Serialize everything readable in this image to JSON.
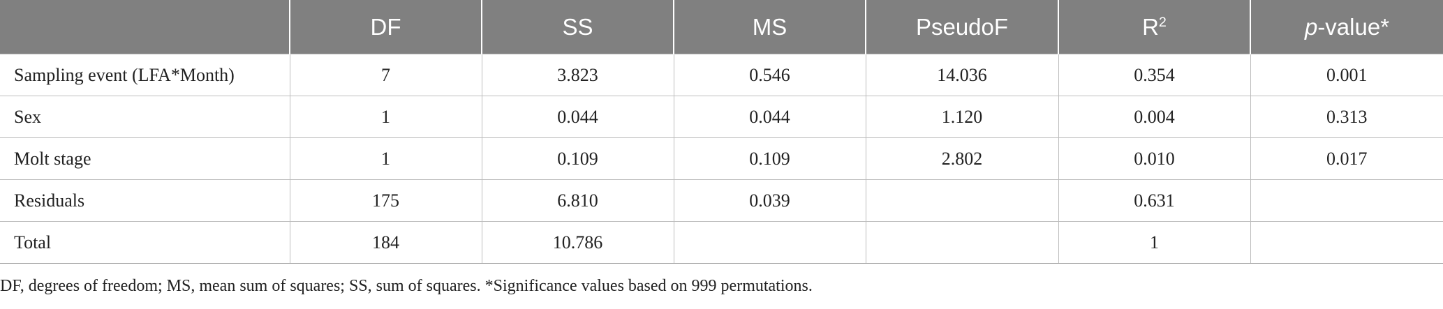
{
  "table": {
    "headers": [
      "",
      "DF",
      "SS",
      "MS",
      "PseudoF",
      "R",
      "-value*"
    ],
    "header_r_superscript": "2",
    "header_p_italic": "p",
    "rows": [
      {
        "term": "Sampling event (LFA*Month)",
        "df": "7",
        "ss": "3.823",
        "ms": "0.546",
        "pseudo_f": "14.036",
        "r2": "0.354",
        "p_value": "0.001"
      },
      {
        "term": "Sex",
        "df": "1",
        "ss": "0.044",
        "ms": "0.044",
        "pseudo_f": "1.120",
        "r2": "0.004",
        "p_value": "0.313"
      },
      {
        "term": "Molt stage",
        "df": "1",
        "ss": "0.109",
        "ms": "0.109",
        "pseudo_f": "2.802",
        "r2": "0.010",
        "p_value": "0.017"
      },
      {
        "term": "Residuals",
        "df": "175",
        "ss": "6.810",
        "ms": "0.039",
        "pseudo_f": "",
        "r2": "0.631",
        "p_value": ""
      },
      {
        "term": "Total",
        "df": "184",
        "ss": "10.786",
        "ms": "",
        "pseudo_f": "",
        "r2": "1",
        "p_value": ""
      }
    ]
  },
  "footnote": "DF, degrees of freedom; MS, mean sum of squares; SS, sum of squares. *Significance values based on 999 permutations.",
  "colors": {
    "header_background": "#808080",
    "header_text": "#ffffff",
    "grid_line": "#bdbdbd"
  }
}
